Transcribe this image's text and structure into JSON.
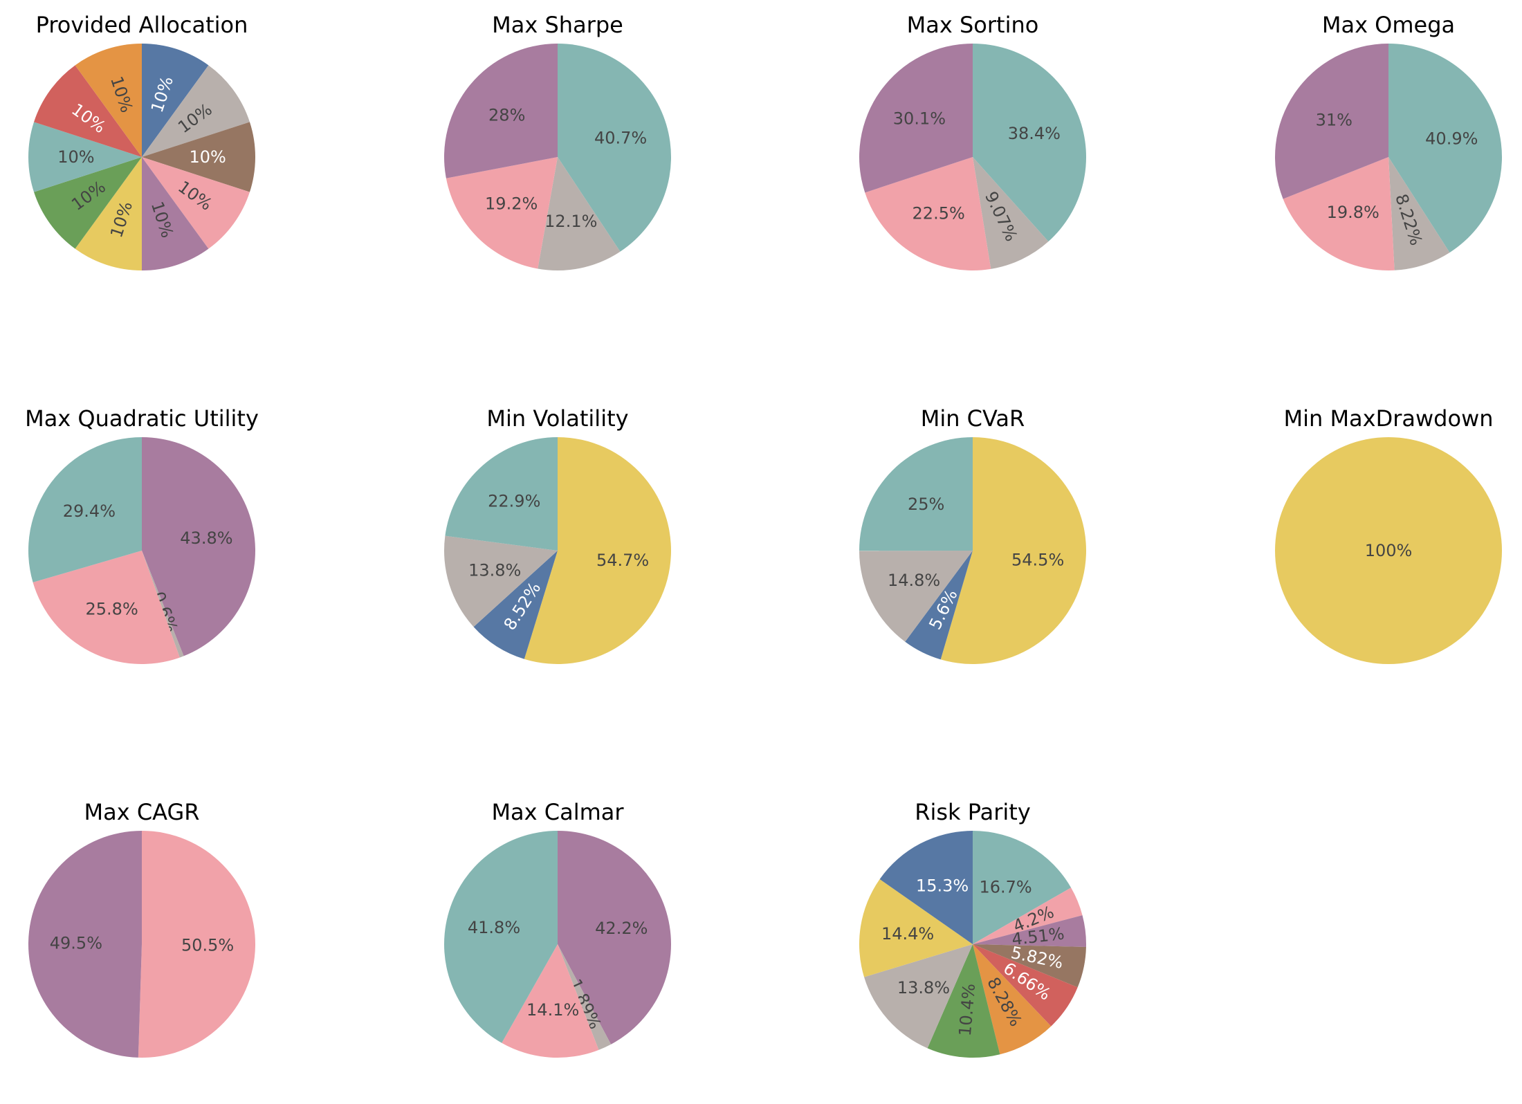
{
  "colors": {
    "blue": "#5778a4",
    "orange": "#e49444",
    "red": "#d1615d",
    "teal": "#85b6b2",
    "green": "#6a9f58",
    "yellow": "#e7ca60",
    "purple": "#a87c9f",
    "pink": "#f1a2a9",
    "brown": "#967662",
    "gray": "#b8b0ac"
  },
  "chart_data": [
    {
      "type": "pie",
      "title": "Provided Allocation",
      "slices": [
        {
          "color": "blue",
          "value": 10,
          "label": "10%"
        },
        {
          "color": "gray",
          "value": 10,
          "label": "10%"
        },
        {
          "color": "brown",
          "value": 10,
          "label": "10%"
        },
        {
          "color": "pink",
          "value": 10,
          "label": "10%"
        },
        {
          "color": "purple",
          "value": 10,
          "label": "10%"
        },
        {
          "color": "yellow",
          "value": 10,
          "label": "10%"
        },
        {
          "color": "green",
          "value": 10,
          "label": "10%"
        },
        {
          "color": "teal",
          "value": 10,
          "label": "10%"
        },
        {
          "color": "red",
          "value": 10,
          "label": "10%"
        },
        {
          "color": "orange",
          "value": 10,
          "label": "10%"
        }
      ]
    },
    {
      "type": "pie",
      "title": "Max Sharpe",
      "slices": [
        {
          "color": "teal",
          "value": 40.7,
          "label": "40.7%"
        },
        {
          "color": "gray",
          "value": 12.1,
          "label": "12.1%"
        },
        {
          "color": "pink",
          "value": 19.2,
          "label": "19.2%"
        },
        {
          "color": "purple",
          "value": 28,
          "label": "28%"
        }
      ]
    },
    {
      "type": "pie",
      "title": "Max Sortino",
      "slices": [
        {
          "color": "teal",
          "value": 38.4,
          "label": "38.4%"
        },
        {
          "color": "gray",
          "value": 9.07,
          "label": "9.07%"
        },
        {
          "color": "pink",
          "value": 22.5,
          "label": "22.5%"
        },
        {
          "color": "purple",
          "value": 30.1,
          "label": "30.1%"
        }
      ]
    },
    {
      "type": "pie",
      "title": "Max Omega",
      "slices": [
        {
          "color": "teal",
          "value": 40.9,
          "label": "40.9%"
        },
        {
          "color": "gray",
          "value": 8.22,
          "label": "8.22%"
        },
        {
          "color": "pink",
          "value": 19.8,
          "label": "19.8%"
        },
        {
          "color": "purple",
          "value": 31,
          "label": "31%"
        }
      ]
    },
    {
      "type": "pie",
      "title": "Max Quadratic Utility",
      "slices": [
        {
          "color": "purple",
          "value": 43.8,
          "label": "43.8%"
        },
        {
          "color": "gray",
          "value": 0.6,
          "label": "0.6%"
        },
        {
          "color": "pink",
          "value": 25.8,
          "label": "25.8%"
        },
        {
          "color": "teal",
          "value": 29.4,
          "label": "29.4%"
        }
      ]
    },
    {
      "type": "pie",
      "title": "Min Volatility",
      "slices": [
        {
          "color": "yellow",
          "value": 54.7,
          "label": "54.7%"
        },
        {
          "color": "blue",
          "value": 8.52,
          "label": "8.52%"
        },
        {
          "color": "gray",
          "value": 13.8,
          "label": "13.8%"
        },
        {
          "color": "teal",
          "value": 22.9,
          "label": "22.9%"
        }
      ]
    },
    {
      "type": "pie",
      "title": "Min CVaR",
      "slices": [
        {
          "color": "yellow",
          "value": 54.5,
          "label": "54.5%"
        },
        {
          "color": "blue",
          "value": 5.6,
          "label": "5.6%"
        },
        {
          "color": "gray",
          "value": 14.8,
          "label": "14.8%"
        },
        {
          "color": "teal",
          "value": 25,
          "label": "25%"
        }
      ]
    },
    {
      "type": "pie",
      "title": "Min MaxDrawdown",
      "slices": [
        {
          "color": "yellow",
          "value": 100,
          "label": "100%"
        }
      ]
    },
    {
      "type": "pie",
      "title": "Max CAGR",
      "slices": [
        {
          "color": "pink",
          "value": 50.5,
          "label": "50.5%"
        },
        {
          "color": "purple",
          "value": 49.5,
          "label": "49.5%"
        }
      ]
    },
    {
      "type": "pie",
      "title": "Max Calmar",
      "slices": [
        {
          "color": "purple",
          "value": 42.2,
          "label": "42.2%"
        },
        {
          "color": "gray",
          "value": 1.89,
          "label": "1.89%"
        },
        {
          "color": "pink",
          "value": 14.1,
          "label": "14.1%"
        },
        {
          "color": "teal",
          "value": 41.8,
          "label": "41.8%"
        }
      ]
    },
    {
      "type": "pie",
      "title": "Risk Parity",
      "slices": [
        {
          "color": "teal",
          "value": 16.7,
          "label": "16.7%"
        },
        {
          "color": "pink",
          "value": 4.2,
          "label": "4.2%"
        },
        {
          "color": "purple",
          "value": 4.51,
          "label": "4.51%"
        },
        {
          "color": "brown",
          "value": 5.82,
          "label": "5.82%"
        },
        {
          "color": "red",
          "value": 6.66,
          "label": "6.66%"
        },
        {
          "color": "orange",
          "value": 8.28,
          "label": "8.28%"
        },
        {
          "color": "green",
          "value": 10.4,
          "label": "10.4%"
        },
        {
          "color": "gray",
          "value": 13.8,
          "label": "13.8%"
        },
        {
          "color": "yellow",
          "value": 14.4,
          "label": "14.4%"
        },
        {
          "color": "blue",
          "value": 15.3,
          "label": "15.3%"
        }
      ]
    }
  ]
}
